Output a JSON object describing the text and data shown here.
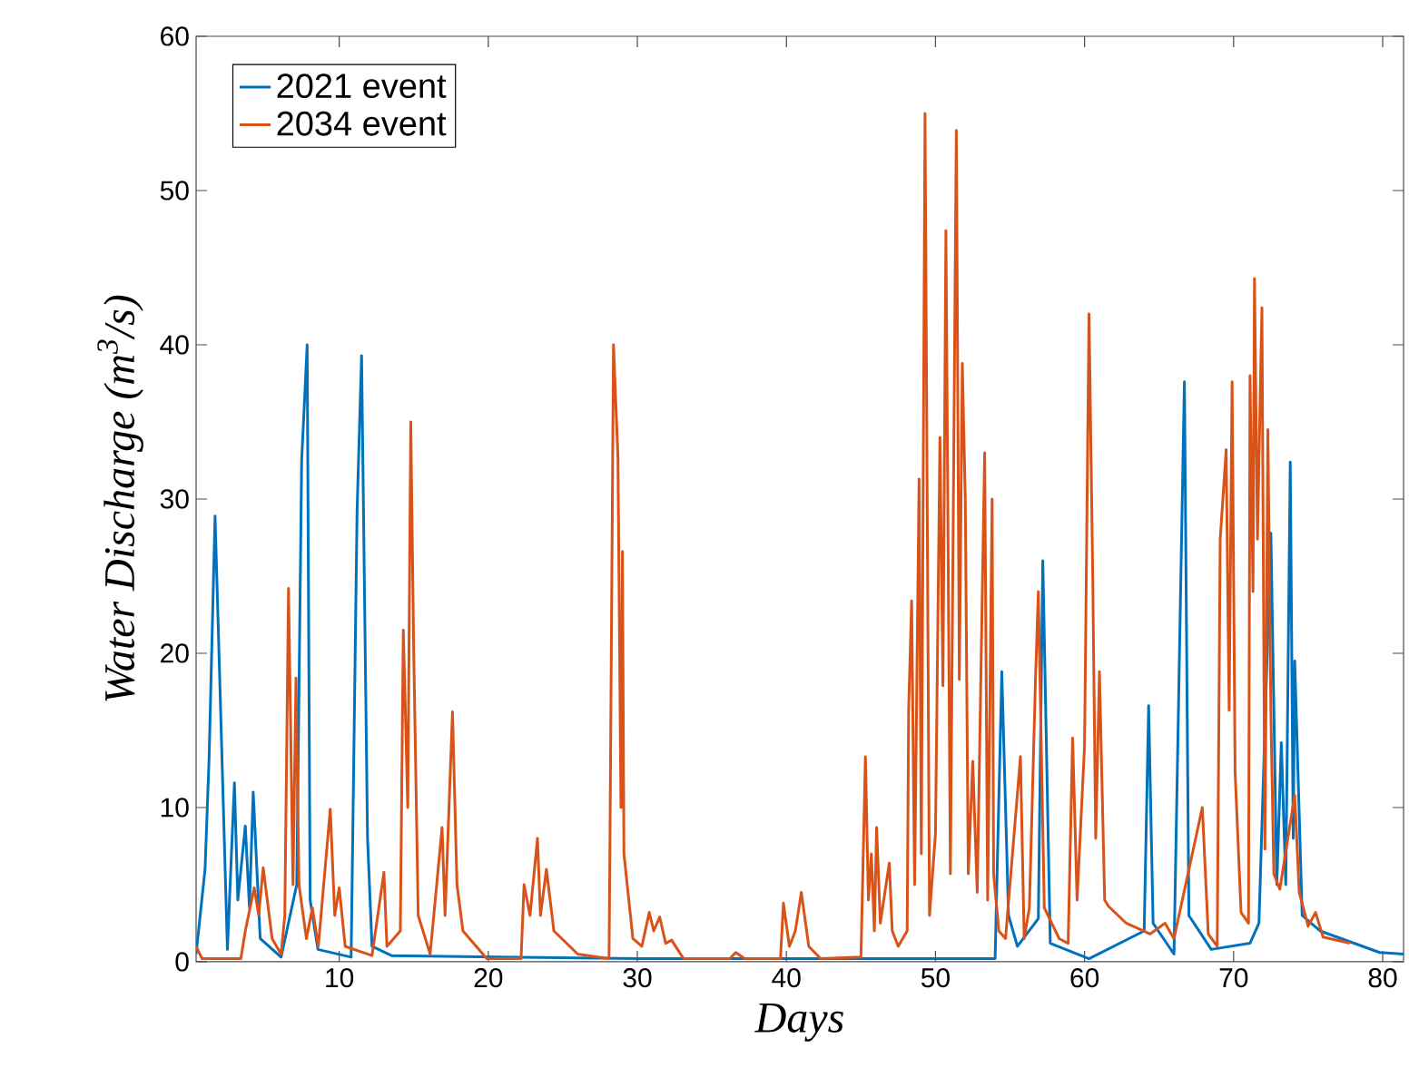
{
  "chart_data": {
    "type": "line",
    "xlabel": "Days",
    "ylabel": "Water Discharge (m$^{3}$/s)",
    "xlim": [
      0.4,
      81.4
    ],
    "ylim": [
      0,
      60
    ],
    "xticks": [
      10,
      20,
      30,
      40,
      50,
      60,
      70,
      80
    ],
    "yticks": [
      0,
      10,
      20,
      30,
      40,
      50,
      60
    ],
    "grid": false,
    "legend": "top left",
    "marker": "none",
    "line_style": "solid",
    "series": [
      {
        "name": "2021 event",
        "color": "#0072bd",
        "x": [
          0.4,
          1.0,
          1.27,
          1.67,
          1.88,
          2.5,
          2.97,
          3.2,
          3.7,
          3.98,
          4.23,
          4.7,
          6.1,
          7.15,
          7.48,
          7.85,
          8.05,
          8.57,
          10.8,
          11.2,
          11.5,
          11.9,
          12.2,
          13.5,
          30,
          45,
          54.0,
          54.45,
          54.9,
          55.5,
          56.9,
          57.2,
          57.7,
          60.3,
          64.0,
          64.3,
          64.6,
          66.0,
          66.7,
          67.0,
          68.5,
          71.1,
          71.7,
          72.5,
          72.9,
          73.2,
          73.5,
          73.8,
          74.0,
          74.1,
          74.6,
          75.8,
          79.8,
          81.4
        ],
        "values": [
          0.5,
          6,
          13.2,
          28.9,
          21.9,
          0.8,
          11.6,
          4,
          8.8,
          3.5,
          11,
          1.5,
          0.3,
          5,
          32.5,
          40,
          4,
          0.8,
          0.3,
          29.3,
          39.3,
          8,
          1,
          0.4,
          0.2,
          0.2,
          0.2,
          18.8,
          3,
          1,
          2.8,
          26,
          1.2,
          0.2,
          2,
          16.6,
          2.5,
          0.5,
          37.6,
          3,
          0.8,
          1.2,
          2.5,
          27.8,
          5,
          14.2,
          5,
          32.4,
          8,
          19.5,
          3,
          2,
          0.6,
          0.5
        ]
      },
      {
        "name": "2034 event",
        "color": "#d95319",
        "x": [
          0.4,
          0.8,
          3.4,
          3.7,
          4.3,
          4.6,
          4.9,
          5.5,
          6.1,
          6.35,
          6.6,
          6.9,
          7.1,
          7.3,
          7.8,
          8.2,
          8.6,
          9.4,
          9.7,
          10.0,
          10.4,
          12.2,
          13.0,
          13.2,
          14.1,
          14.3,
          14.6,
          14.8,
          15.0,
          15.3,
          16.1,
          16.9,
          17.1,
          17.6,
          17.9,
          18.3,
          19.9,
          22.2,
          22.4,
          22.8,
          23.3,
          23.5,
          23.9,
          24.4,
          26.0,
          28.1,
          28.15,
          28.4,
          28.7,
          28.9,
          29.0,
          29.1,
          29.7,
          30.3,
          30.8,
          31.1,
          31.5,
          31.9,
          32.3,
          33.1,
          36.2,
          36.6,
          37.2,
          39.6,
          39.8,
          40.2,
          40.6,
          41.0,
          41.5,
          42.3,
          45.0,
          45.3,
          45.5,
          45.7,
          45.9,
          46.05,
          46.3,
          46.9,
          47.1,
          47.5,
          48.1,
          48.2,
          48.4,
          48.6,
          48.9,
          49.05,
          49.3,
          49.6,
          50.0,
          50.3,
          50.5,
          50.7,
          51.0,
          51.4,
          51.6,
          51.8,
          52.0,
          52.2,
          52.5,
          52.8,
          53.3,
          53.5,
          53.8,
          53.9,
          54.25,
          54.7,
          55.7,
          55.95,
          56.3,
          56.7,
          56.9,
          57.3,
          58.3,
          58.9,
          59.2,
          59.5,
          60.0,
          60.3,
          60.55,
          60.75,
          61.0,
          61.35,
          61.6,
          62.8,
          64.4,
          65.4,
          66.0,
          67.9,
          68.3,
          68.9,
          69.1,
          69.5,
          69.7,
          69.9,
          70.1,
          70.5,
          71.0,
          71.1,
          71.3,
          71.4,
          71.6,
          71.9,
          72.1,
          72.3,
          72.5,
          72.7,
          73.1,
          74.1,
          74.4,
          75.0,
          75.5,
          76.0,
          77.8
        ],
        "values": [
          1,
          0.2,
          0.2,
          2,
          4.8,
          3,
          6.1,
          1.5,
          0.5,
          3,
          24.2,
          5,
          18.4,
          5,
          1.5,
          3.5,
          1,
          9.9,
          3,
          4.8,
          1,
          0.4,
          5.8,
          1,
          2,
          21.5,
          10,
          35,
          20,
          3,
          0.5,
          8.7,
          3,
          16.2,
          5,
          2,
          0.2,
          0.2,
          5,
          3,
          8,
          3,
          6,
          2,
          0.5,
          0.2,
          6,
          40,
          32.7,
          10,
          26.6,
          7,
          1.5,
          1,
          3.2,
          2,
          2.9,
          1.2,
          1.4,
          0.2,
          0.2,
          0.6,
          0.2,
          0.2,
          3.8,
          1,
          2,
          4.5,
          1,
          0.2,
          0.3,
          13.3,
          4,
          7,
          2,
          8.7,
          2.5,
          6.4,
          2,
          1,
          2,
          16.4,
          23.4,
          5,
          31.3,
          7,
          55,
          3,
          8.3,
          34,
          17.9,
          47.4,
          5.7,
          53.9,
          18.3,
          38.8,
          30,
          5.7,
          13,
          4.5,
          33,
          4,
          30,
          5.7,
          2,
          1.5,
          13.3,
          1.5,
          3.5,
          18,
          24,
          3.5,
          1.5,
          1.2,
          14.5,
          4,
          14,
          42,
          25,
          8,
          18.8,
          4,
          3.6,
          2.5,
          1.8,
          2.5,
          1.5,
          10,
          1.8,
          1,
          27.4,
          33.2,
          16.3,
          37.6,
          12.3,
          3.2,
          2.5,
          38,
          24,
          44.3,
          27.4,
          42.4,
          7.3,
          34.5,
          16,
          5.7,
          4.7,
          10.8,
          4.5,
          2.3,
          3.2,
          1.6,
          1.2
        ]
      }
    ]
  }
}
